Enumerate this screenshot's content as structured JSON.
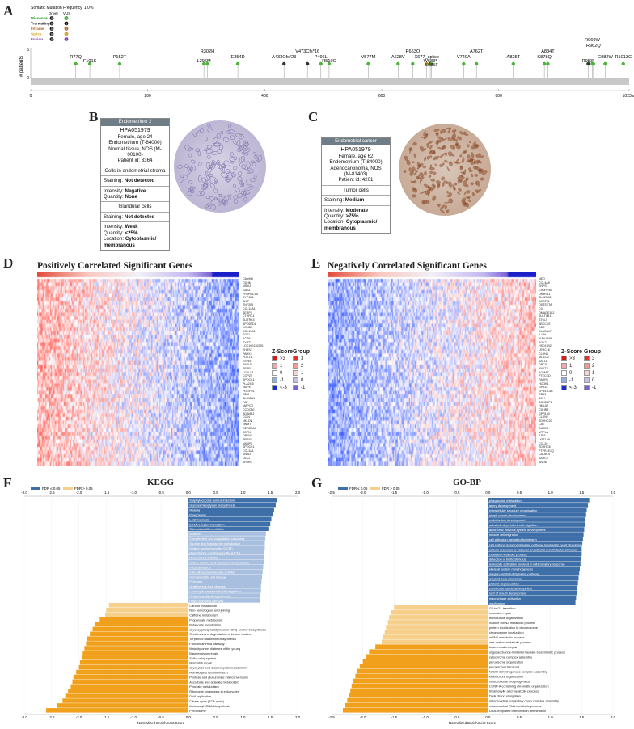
{
  "panels": {
    "A": "A",
    "B": "B",
    "C": "C",
    "D": "D",
    "E": "E",
    "F": "F",
    "G": "G"
  },
  "lollipop": {
    "legend_title": "Somatic Mutation Frequency",
    "legend_pct": "1.0%",
    "legend_col1": "Driver",
    "legend_col2": "VUS",
    "legend_rows": [
      {
        "label": "Missense",
        "color": "#1a9a1a",
        "a": "0",
        "b": "25"
      },
      {
        "label": "Truncating",
        "color": "#111111",
        "a": "0",
        "b": "5"
      },
      {
        "label": "Inframe",
        "color": "#b06a2a",
        "a": "0",
        "b": "0"
      },
      {
        "label": "Splice",
        "color": "#d9a21b",
        "a": "0",
        "b": "1"
      },
      {
        "label": "Fusion",
        "color": "#7a3aa0",
        "a": "0",
        "b": "0"
      }
    ],
    "ylabel": "# patients",
    "yticks": [
      "0",
      "5"
    ],
    "xticks": [
      "0",
      "200",
      "400",
      "600",
      "800",
      "1023aa"
    ],
    "protein_length": 1023,
    "mutations": [
      {
        "label": "R77Q",
        "pos": 77,
        "type": "missense",
        "row": 0
      },
      {
        "label": "F101S",
        "pos": 101,
        "type": "missense",
        "row": 1
      },
      {
        "label": "P152T",
        "pos": 152,
        "type": "missense",
        "row": 0
      },
      {
        "label": "R302H",
        "pos": 302,
        "type": "missense",
        "row": -1
      },
      {
        "label": "L296M",
        "pos": 296,
        "type": "missense",
        "row": 1
      },
      {
        "label": "E354D",
        "pos": 354,
        "type": "missense",
        "row": 0
      },
      {
        "label": "V473CfsTer16",
        "pos": 473,
        "type": "truncating",
        "row": -1,
        "text": "V473Cfs*16"
      },
      {
        "label": "A433GfsTer23",
        "pos": 433,
        "type": "truncating",
        "row": 0,
        "text": "A433Gfs*23"
      },
      {
        "label": "P496L",
        "pos": 496,
        "type": "missense",
        "row": 0
      },
      {
        "label": "R510C",
        "pos": 510,
        "type": "missense",
        "row": 1
      },
      {
        "label": "V577M",
        "pos": 577,
        "type": "missense",
        "row": 0
      },
      {
        "label": "A628V",
        "pos": 628,
        "type": "missense",
        "row": 0
      },
      {
        "label": "R653Q",
        "pos": 653,
        "type": "missense",
        "row": -1
      },
      {
        "label": "X677_splice",
        "pos": 677,
        "type": "splice",
        "row": 0
      },
      {
        "label": "W683Ter",
        "pos": 683,
        "type": "truncating",
        "row": 1,
        "text": "W683*"
      },
      {
        "label": "S685F",
        "pos": 685,
        "type": "missense",
        "row": 2
      },
      {
        "label": "A762T",
        "pos": 762,
        "type": "missense",
        "row": -1
      },
      {
        "label": "V740A",
        "pos": 740,
        "type": "missense",
        "row": 0
      },
      {
        "label": "A825T",
        "pos": 825,
        "type": "missense",
        "row": 0
      },
      {
        "label": "A884T",
        "pos": 884,
        "type": "missense",
        "row": -1
      },
      {
        "label": "K878Q",
        "pos": 878,
        "type": "missense",
        "row": 0
      },
      {
        "label": "R953Ter",
        "pos": 953,
        "type": "truncating",
        "row": 1,
        "text": "R953*"
      },
      {
        "label": "R960W",
        "pos": 960,
        "type": "missense",
        "row": -3
      },
      {
        "label": "R962Q",
        "pos": 962,
        "type": "missense",
        "row": -2
      },
      {
        "label": "G982W",
        "pos": 982,
        "type": "missense",
        "row": 0
      },
      {
        "label": "R1013C",
        "pos": 1013,
        "type": "missense",
        "row": 0
      }
    ]
  },
  "card_b": {
    "header": "Endometrium 2",
    "id": "HPA051979",
    "patient": "Female, age 24",
    "tissue": "Endometrium (T-84000)",
    "normal": "Normal tissue, NOS (M-",
    "normal2": "00100)",
    "pid": "Patient id: 3364",
    "sec1_title": "Cells in endometrial stroma",
    "sec1_staining_lbl": "Staining:",
    "sec1_staining": "Not detected",
    "sec1_intensity_lbl": "Intensity:",
    "sec1_intensity": "Negative",
    "sec1_quantity_lbl": "Quantity:",
    "sec1_quantity": "None",
    "sec2_title": "Glandular cells",
    "sec2_staining_lbl": "Staining:",
    "sec2_staining": "Not detected",
    "sec2_intensity_lbl": "Intensity:",
    "sec2_intensity": "Weak",
    "sec2_quantity_lbl": "Quantity:",
    "sec2_quantity": "<25%",
    "sec2_location_lbl": "Location:",
    "sec2_location": "Cytoplasmic/ membranous"
  },
  "card_c": {
    "header": "Endometrial cancer",
    "id": "HPA051979",
    "patient": "Female, age 62",
    "tissue": "Endometrium (T-84000)",
    "diag": "Adenocarcinoma, NOS",
    "diag2": "(M-81403)",
    "pid": "Patient id: 4201",
    "sec1_title": "Tumor cells",
    "sec1_staining_lbl": "Staining:",
    "sec1_staining": "Medium",
    "sec1_intensity_lbl": "Intensity:",
    "sec1_intensity": "Moderate",
    "sec1_quantity_lbl": "Quantity:",
    "sec1_quantity": ">75%",
    "sec1_location_lbl": "Location:",
    "sec1_location": "Cytoplasmic/ membranous"
  },
  "heatmap_d": {
    "title": "Positively Correlated Significant Genes",
    "genes": [
      "C6orf48",
      "CDH6",
      "NIDKA",
      "GAS1",
      "PPAPDC1A",
      "CYP1B1",
      "BNIP",
      "ZNF395",
      "COL12A1",
      "SERP2",
      "CTHRC1",
      "SLITRK4",
      "APOD2DL",
      "KCND2",
      "COL11A1",
      "FGF1",
      "ACTA2",
      "SYPT3",
      "LOC100130276",
      "THBS2",
      "PAHX3",
      "PDSTN",
      "TSPEF",
      "TAGLN",
      "SFRP",
      "LGALS1",
      "COPZ2",
      "SPOCK1",
      "PLA2G5",
      "NDP4",
      "PDGFRL",
      "GEM",
      "SLC11A1",
      "FAP",
      "MAPCD",
      "CCDC80",
      "ADAM12",
      "CCIN",
      "NKLDN",
      "NNMT",
      "OERCAM",
      "ASPN",
      "DPAN2",
      "PRRX1",
      "VAMP3",
      "SPOCK1",
      "COL3A1",
      "SNAI3",
      "DLK1",
      "SPARC"
    ],
    "legend_z": "Z-Score",
    "legend_group": "Group",
    "z_labels": [
      ">3",
      "1",
      "0",
      "-1",
      "<-3"
    ],
    "g_labels": [
      "3",
      "2",
      "1",
      "0",
      "-1"
    ]
  },
  "heatmap_e": {
    "title": "Negatively Correlated Significant Genes",
    "genes": [
      "NEO",
      "COL4A5",
      "ENPS",
      "C9ORF40",
      "OMRS11",
      "SLC25A3",
      "ACOT11",
      "OSTSETA",
      "CII",
      "OMAGE1L2",
      "SULT1B1",
      "ST6L3",
      "ABCC1S",
      "CBC",
      "CLACAVIT",
      "IL17A",
      "KIAA1549",
      "SGK2",
      "HSD11B2",
      "LRRC16",
      "CLDN4",
      "MOCC2",
      "SALL1",
      "GPCXL",
      "ANKT2",
      "AGMAT",
      "PTECCD",
      "FAOR6",
      "HOOK1",
      "GPA33",
      "EPB41L4B",
      "CD51",
      "SCH",
      "SOX2BP1",
      "HMLA2",
      "CDHR5",
      "GPR160",
      "CLDN2",
      "ZDHHC20",
      "CAE",
      "DUOX2",
      "MTPLA",
      "TJP3",
      "UGT1A6",
      "COL26",
      "ZDHHC8",
      "PTPR1E1Q",
      "CALML4",
      "SARC2",
      "ANO6"
    ],
    "legend_z": "Z-Score",
    "legend_group": "Group",
    "z_labels": [
      ">3",
      "1",
      "0",
      "-1",
      "<-3"
    ],
    "g_labels": [
      "3",
      "2",
      "1",
      "0",
      "-1"
    ]
  },
  "chart_data": [
    {
      "type": "bar",
      "title": "KEGG",
      "xlabel": "Normalized Enrichment Score",
      "xlim": [
        -3,
        2
      ],
      "legend": [
        "FDR ≤ 0.05",
        "FDR > 0.05"
      ],
      "colors": {
        "pos_sig": "#3f6fa8",
        "pos_nonsig": "#a9bfdf",
        "neg_sig": "#f0a01a",
        "neg_nonsig": "#f6cf8a"
      },
      "categories": [
        "Staphylococcus aureus infection",
        "Glycosaminoglycan biosynthesis",
        "Malaria",
        "Phagosome",
        "Leishmaniasis",
        "ECM-receptor interaction",
        "Osteoclast differentiation",
        "Asthma",
        "Complement and coagulation cascades",
        "Taurine and hypotaurine metabolism",
        "Dilated cardiomyopathy (DCM)",
        "Hypertrophic cardiomyopathy (HCM)",
        "Rheumatoid arthritis",
        "Valine, leucine and isoleucine biosynthesis",
        "Focal adhesion",
        "Cell adhesion molecules (CAMs)",
        "Hematopoietic cell lineage",
        "Pertussis",
        "Graft-versus-host disease",
        "Leukocyte transendothelial migration",
        "Hedgehog signaling pathway",
        "Hippo signaling pathway",
        "Carbon metabolism",
        "Non-homologous end-joining",
        "Caffeine metabolism",
        "Propanoate metabolism",
        "Butanoate metabolism",
        "Glycosylphosphatidylinositol (GPI)-anchor biosynthesis",
        "Synthesis and degradation of ketone bodies",
        "Terpenoid backbone biosynthesis",
        "Fanconi anemia pathway",
        "Maturity onset diabetes of the young",
        "Base excision repair",
        "Sulfur relay system",
        "Mismatch repair",
        "Glyoxylate and dicarboxylate metabolism",
        "Homologous recombination",
        "Pentose and glucuronate interconversions",
        "Ascorbate and aldarate metabolism",
        "Pyruvate metabolism",
        "Ribosome biogenesis in eukaryotes",
        "DNA replication",
        "Citrate cycle (TCA cycle)",
        "Aminoacyl-tRNA biosynthesis",
        "Peroxisome"
      ],
      "values": [
        1.62,
        1.6,
        1.57,
        1.55,
        1.52,
        1.5,
        1.48,
        1.42,
        1.41,
        1.4,
        1.4,
        1.39,
        1.39,
        1.38,
        1.37,
        1.36,
        1.35,
        1.34,
        1.33,
        1.33,
        1.32,
        1.31,
        -1.45,
        -1.5,
        -1.52,
        -1.62,
        -1.7,
        -1.75,
        -1.8,
        -1.85,
        -1.87,
        -1.9,
        -1.93,
        -1.95,
        -1.98,
        -2.0,
        -2.05,
        -2.1,
        -2.12,
        -2.15,
        -2.2,
        -2.25,
        -2.3,
        -2.4,
        -2.6
      ],
      "significant": [
        true,
        true,
        true,
        true,
        true,
        true,
        true,
        false,
        false,
        false,
        false,
        false,
        false,
        false,
        false,
        false,
        false,
        false,
        false,
        false,
        false,
        false,
        false,
        false,
        false,
        true,
        true,
        true,
        true,
        true,
        true,
        true,
        true,
        true,
        true,
        true,
        true,
        true,
        true,
        true,
        true,
        true,
        true,
        true,
        true
      ]
    },
    {
      "type": "bar",
      "title": "GO-BP",
      "xlabel": "Normalized Enrichment Score",
      "xlim": [
        -2.5,
        2
      ],
      "legend": [
        "FDR ≤ 0.05",
        "FDR > 0.05"
      ],
      "colors": {
        "pos_sig": "#3f6fa8",
        "pos_nonsig": "#a9bfdf",
        "neg_sig": "#f0a01a",
        "neg_nonsig": "#f6cf8a"
      },
      "categories": [
        "phagosome maturation",
        "artery development",
        "extracellular structure organization",
        "lymph vessel development",
        "endothelium development",
        "substrate-dependent cell migration",
        "autonomic nervous system development",
        "muscle cell migration",
        "cell adhesion mediated by integrin",
        "cell surface receptor signaling pathway involved in heart development",
        "cellular response to vascular endothelial growth factor stimulus",
        "collagen metabolic process",
        "detection of biotic stimulus",
        "leukocyte activation involved in inflammatory response",
        "skeletal system morphogenesis",
        "integrin-mediated signaling pathway",
        "amyloid-beta clearance",
        "platelet degranulation",
        "connective tissue development",
        "roof of mouth development",
        "macrophage activation",
        "ossification",
        "G0 to G1 transition",
        "mismatch repair",
        "microtubule organization",
        "histone mRNA metabolic process",
        "protein localization to chromosome",
        "chromosome localization",
        "mRNA metabolic process",
        "one-carbon metabolic process",
        "base-excision repair",
        "oligosaccharide-lipid intermediate biosynthetic process",
        "cytochrome complex assembly",
        "peroxisome organization",
        "peroxisomal transport",
        "NADH dehydrogenase complex assembly",
        "kinetochore organization",
        "mitochondrial morphogenesis",
        "CENP-A containing chromatin organization",
        "tricarboxylic acid metabolic process",
        "DNA strand elongation",
        "mitochondrial respiratory chain complex assembly",
        "mitochondrial RNA metabolic process",
        "DNA-templated transcription, termination"
      ],
      "values": [
        1.62,
        1.6,
        1.58,
        1.57,
        1.56,
        1.55,
        1.54,
        1.53,
        1.52,
        1.51,
        1.5,
        1.5,
        1.49,
        1.48,
        1.47,
        1.46,
        1.45,
        1.44,
        1.43,
        1.42,
        1.41,
        1.4,
        -1.5,
        -1.55,
        -1.58,
        -1.6,
        -1.63,
        -1.65,
        -1.68,
        -1.7,
        -1.8,
        -1.9,
        -1.95,
        -2.0,
        -2.05,
        -2.1,
        -2.12,
        -2.15,
        -2.18,
        -2.2,
        -2.22,
        -2.25,
        -2.28,
        -2.32
      ],
      "significant": [
        true,
        true,
        true,
        true,
        true,
        true,
        true,
        true,
        true,
        true,
        true,
        true,
        true,
        true,
        true,
        true,
        true,
        true,
        true,
        true,
        true,
        true,
        false,
        false,
        false,
        false,
        false,
        false,
        false,
        false,
        true,
        true,
        true,
        true,
        true,
        true,
        true,
        true,
        true,
        true,
        true,
        true,
        true,
        true
      ]
    }
  ]
}
